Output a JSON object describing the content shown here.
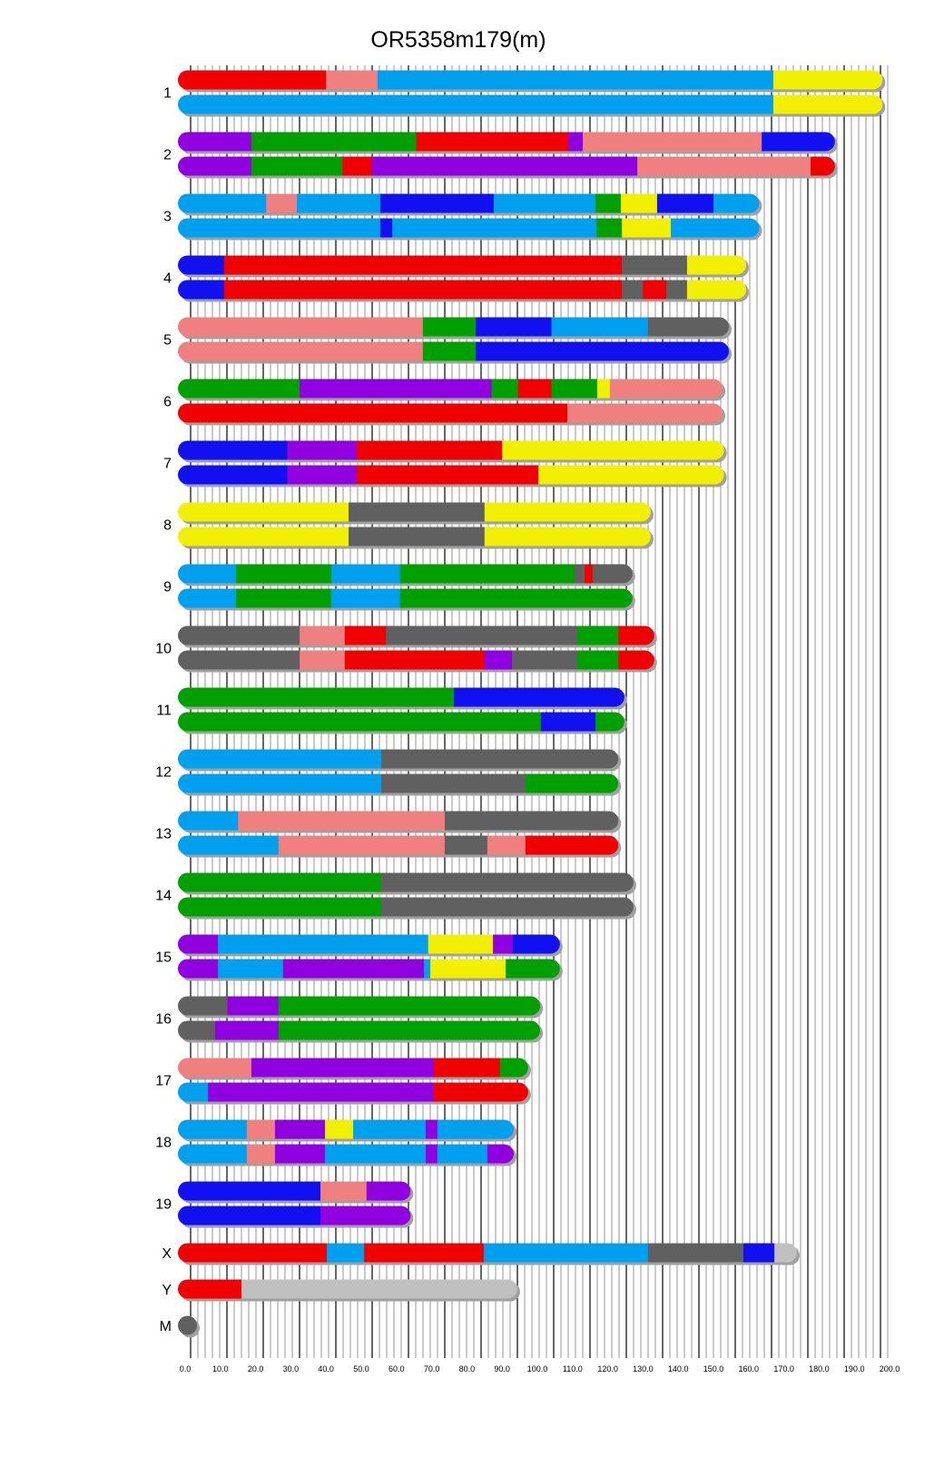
{
  "title": "OR5358m179(m)",
  "chart_data": {
    "type": "chromosome-painting",
    "title": "OR5358m179(m)",
    "xlim": [
      0,
      200
    ],
    "xticks": [
      "0.0",
      "10.0",
      "20.0",
      "30.0",
      "40.0",
      "50.0",
      "60.0",
      "70.0",
      "80.0",
      "90.0",
      "100.0",
      "110.0",
      "120.0",
      "130.0",
      "140.0",
      "150.0",
      "160.0",
      "170.0",
      "180.0",
      "190.0",
      "200.0"
    ],
    "colors": {
      "red": "#f00000",
      "salmon": "#f08080",
      "blue": "#00a0f0",
      "yellow": "#f0f000",
      "purple": "#9000e0",
      "green": "#00a000",
      "dblue": "#1010f0",
      "gray": "#606060",
      "lgray": "#c0c0c0"
    },
    "chromosomes": [
      {
        "name": "1",
        "haplotypes": [
          [
            [
              40,
              "red"
            ],
            [
              54.6,
              "salmon"
            ],
            [
              167,
              "blue"
            ],
            [
              198,
              "yellow"
            ]
          ],
          [
            [
              167,
              "blue"
            ],
            [
              198,
              "yellow"
            ]
          ]
        ]
      },
      {
        "name": "2",
        "haplotypes": [
          [
            [
              18.8,
              "purple"
            ],
            [
              65.6,
              "green"
            ],
            [
              108.8,
              "red"
            ],
            [
              112.9,
              "purple"
            ],
            [
              163.7,
              "salmon"
            ],
            [
              184.5,
              "dblue"
            ]
          ],
          [
            [
              18.8,
              "purple"
            ],
            [
              44.6,
              "green"
            ],
            [
              53,
              "red"
            ],
            [
              128.4,
              "purple"
            ],
            [
              177.6,
              "salmon"
            ],
            [
              184.5,
              "red"
            ]
          ]
        ]
      },
      {
        "name": "3",
        "haplotypes": [
          [
            [
              23,
              "blue"
            ],
            [
              31.7,
              "salmon"
            ],
            [
              55.4,
              "blue"
            ],
            [
              87.6,
              "dblue"
            ],
            [
              116.5,
              "blue"
            ],
            [
              123.7,
              "green"
            ],
            [
              134,
              "yellow"
            ],
            [
              150,
              "dblue"
            ],
            [
              163,
              "blue"
            ]
          ],
          [
            [
              55.4,
              "blue"
            ],
            [
              58.8,
              "dblue"
            ],
            [
              116.8,
              "blue"
            ],
            [
              124,
              "green"
            ],
            [
              137.9,
              "yellow"
            ],
            [
              163,
              "blue"
            ]
          ]
        ]
      },
      {
        "name": "4",
        "haplotypes": [
          [
            [
              11,
              "dblue"
            ],
            [
              124,
              "red"
            ],
            [
              142.5,
              "gray"
            ],
            [
              159.3,
              "yellow"
            ]
          ],
          [
            [
              11,
              "dblue"
            ],
            [
              124,
              "red"
            ],
            [
              130,
              "gray"
            ],
            [
              136.6,
              "red"
            ],
            [
              142.5,
              "gray"
            ],
            [
              159.3,
              "yellow"
            ]
          ]
        ]
      },
      {
        "name": "5",
        "haplotypes": [
          [
            [
              67.5,
              "salmon"
            ],
            [
              82.5,
              "green"
            ],
            [
              104,
              "dblue"
            ],
            [
              131.4,
              "blue"
            ],
            [
              154.4,
              "gray"
            ]
          ],
          [
            [
              67.5,
              "salmon"
            ],
            [
              82.5,
              "green"
            ],
            [
              154.4,
              "dblue"
            ]
          ]
        ]
      },
      {
        "name": "6",
        "haplotypes": [
          [
            [
              32.5,
              "green"
            ],
            [
              87,
              "purple"
            ],
            [
              94.5,
              "green"
            ],
            [
              104,
              "red"
            ],
            [
              117,
              "green"
            ],
            [
              120.6,
              "yellow"
            ],
            [
              152.6,
              "salmon"
            ]
          ],
          [
            [
              108.5,
              "red"
            ],
            [
              152.6,
              "salmon"
            ]
          ]
        ]
      },
      {
        "name": "7",
        "haplotypes": [
          [
            [
              29,
              "dblue"
            ],
            [
              48.7,
              "purple"
            ],
            [
              90,
              "red"
            ],
            [
              153,
              "yellow"
            ]
          ],
          [
            [
              29,
              "dblue"
            ],
            [
              48.7,
              "purple"
            ],
            [
              100.3,
              "red"
            ],
            [
              153,
              "yellow"
            ]
          ]
        ]
      },
      {
        "name": "8",
        "haplotypes": [
          [
            [
              46.4,
              "yellow"
            ],
            [
              85,
              "gray"
            ],
            [
              132.2,
              "yellow"
            ]
          ],
          [
            [
              46.4,
              "yellow"
            ],
            [
              85,
              "gray"
            ],
            [
              132.2,
              "yellow"
            ]
          ]
        ]
      },
      {
        "name": "9",
        "haplotypes": [
          [
            [
              14.4,
              "blue"
            ],
            [
              41.5,
              "green"
            ],
            [
              61,
              "blue"
            ],
            [
              110.5,
              "green"
            ],
            [
              113.4,
              "gray"
            ],
            [
              115.7,
              "red"
            ],
            [
              127,
              "gray"
            ]
          ],
          [
            [
              14.4,
              "blue"
            ],
            [
              41.5,
              "green"
            ],
            [
              61,
              "blue"
            ],
            [
              127,
              "green"
            ]
          ]
        ]
      },
      {
        "name": "10",
        "haplotypes": [
          [
            [
              32.5,
              "gray"
            ],
            [
              45.3,
              "salmon"
            ],
            [
              57,
              "red"
            ],
            [
              111.3,
              "gray"
            ],
            [
              123,
              "green"
            ],
            [
              133.2,
              "red"
            ]
          ],
          [
            [
              32.5,
              "gray"
            ],
            [
              45.3,
              "salmon"
            ],
            [
              85,
              "red"
            ],
            [
              92.8,
              "purple"
            ],
            [
              111.3,
              "gray"
            ],
            [
              123,
              "green"
            ],
            [
              133.2,
              "red"
            ]
          ]
        ]
      },
      {
        "name": "11",
        "haplotypes": [
          [
            [
              76.3,
              "green"
            ],
            [
              124.7,
              "dblue"
            ]
          ],
          [
            [
              101,
              "green"
            ],
            [
              116.5,
              "dblue"
            ],
            [
              124.7,
              "green"
            ]
          ]
        ]
      },
      {
        "name": "12",
        "haplotypes": [
          [
            [
              55.7,
              "blue"
            ],
            [
              123,
              "gray"
            ]
          ],
          [
            [
              55.7,
              "blue"
            ],
            [
              96.6,
              "gray"
            ],
            [
              123,
              "green"
            ]
          ]
        ]
      },
      {
        "name": "13",
        "haplotypes": [
          [
            [
              15,
              "blue"
            ],
            [
              73.7,
              "salmon"
            ],
            [
              123,
              "gray"
            ]
          ],
          [
            [
              26.5,
              "blue"
            ],
            [
              73.7,
              "salmon"
            ],
            [
              85.8,
              "gray"
            ],
            [
              96.6,
              "salmon"
            ],
            [
              123,
              "red"
            ]
          ]
        ]
      },
      {
        "name": "14",
        "haplotypes": [
          [
            [
              55.7,
              "green"
            ],
            [
              127.3,
              "gray"
            ]
          ],
          [
            [
              55.7,
              "green"
            ],
            [
              127.3,
              "gray"
            ]
          ]
        ]
      },
      {
        "name": "15",
        "haplotypes": [
          [
            [
              9.3,
              "purple"
            ],
            [
              69,
              "blue"
            ],
            [
              87.4,
              "yellow"
            ],
            [
              93,
              "purple"
            ],
            [
              106.4,
              "dblue"
            ]
          ],
          [
            [
              9.3,
              "purple"
            ],
            [
              27.8,
              "blue"
            ],
            [
              67.8,
              "purple"
            ],
            [
              69.6,
              "blue"
            ],
            [
              91,
              "yellow"
            ],
            [
              106.4,
              "green"
            ]
          ]
        ]
      },
      {
        "name": "16",
        "haplotypes": [
          [
            [
              12,
              "gray"
            ],
            [
              26.5,
              "purple"
            ],
            [
              100.8,
              "green"
            ]
          ],
          [
            [
              8.5,
              "gray"
            ],
            [
              26.5,
              "purple"
            ],
            [
              100.8,
              "green"
            ]
          ]
        ]
      },
      {
        "name": "17",
        "haplotypes": [
          [
            [
              18.8,
              "salmon"
            ],
            [
              70.6,
              "purple"
            ],
            [
              89.4,
              "red"
            ],
            [
              97.4,
              "green"
            ]
          ],
          [
            [
              6.5,
              "blue"
            ],
            [
              70.6,
              "purple"
            ],
            [
              97.4,
              "red"
            ]
          ]
        ]
      },
      {
        "name": "18",
        "haplotypes": [
          [
            [
              17.5,
              "blue"
            ],
            [
              25.5,
              "salmon"
            ],
            [
              39.7,
              "purple"
            ],
            [
              47.7,
              "yellow"
            ],
            [
              68.3,
              "blue"
            ],
            [
              71.6,
              "purple"
            ],
            [
              93.3,
              "blue"
            ]
          ],
          [
            [
              17.5,
              "blue"
            ],
            [
              25.5,
              "salmon"
            ],
            [
              39.7,
              "purple"
            ],
            [
              68.3,
              "blue"
            ],
            [
              71.6,
              "purple"
            ],
            [
              85.8,
              "blue"
            ],
            [
              93.3,
              "purple"
            ]
          ]
        ]
      },
      {
        "name": "19",
        "haplotypes": [
          [
            [
              38.4,
              "dblue"
            ],
            [
              51.5,
              "salmon"
            ],
            [
              64,
              "purple"
            ]
          ],
          [
            [
              38.4,
              "dblue"
            ],
            [
              64,
              "purple"
            ]
          ]
        ]
      },
      {
        "name": "X",
        "haplotypes": [
          [
            [
              40.2,
              "red"
            ],
            [
              50.8,
              "blue"
            ],
            [
              84.8,
              "red"
            ],
            [
              131.4,
              "blue"
            ],
            [
              158.5,
              "gray"
            ],
            [
              167.3,
              "dblue"
            ],
            [
              173.7,
              "lgray"
            ]
          ]
        ]
      },
      {
        "name": "Y",
        "haplotypes": [
          [
            [
              16,
              "red"
            ],
            [
              94.3,
              "lgray"
            ]
          ]
        ]
      },
      {
        "name": "M",
        "haplotypes": [
          [
            [
              0.5,
              "gray"
            ]
          ]
        ]
      }
    ]
  }
}
